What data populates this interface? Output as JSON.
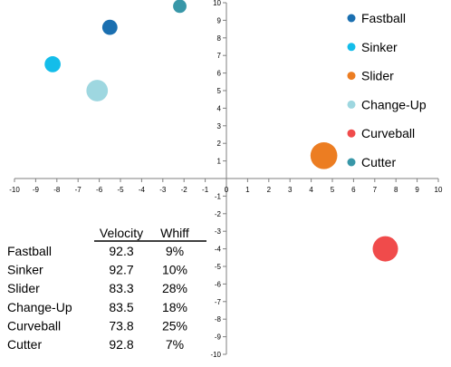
{
  "chart_data": {
    "type": "scatter",
    "xlim": [
      -10,
      10
    ],
    "ylim": [
      -10,
      10
    ],
    "x_ticks": [
      -10,
      -9,
      -8,
      -7,
      -6,
      -5,
      -4,
      -3,
      -2,
      -1,
      0,
      1,
      2,
      3,
      4,
      5,
      6,
      7,
      8,
      9,
      10
    ],
    "y_ticks": [
      -10,
      -9,
      -8,
      -7,
      -6,
      -5,
      -4,
      -3,
      -2,
      -1,
      1,
      2,
      3,
      4,
      5,
      6,
      7,
      8,
      9,
      10
    ],
    "grid": false,
    "legend_position": "top-right",
    "series": [
      {
        "name": "Fastball",
        "x": -5.5,
        "y": 8.6,
        "size": 9,
        "color": "#1a6fb0"
      },
      {
        "name": "Sinker",
        "x": -8.2,
        "y": 6.5,
        "size": 10,
        "color": "#14bdea"
      },
      {
        "name": "Slider",
        "x": 4.6,
        "y": 1.3,
        "size": 28,
        "color": "#ec7d22"
      },
      {
        "name": "Change-Up",
        "x": -6.1,
        "y": 5.0,
        "size": 18,
        "color": "#9ed7e0"
      },
      {
        "name": "Curveball",
        "x": 7.5,
        "y": -4.0,
        "size": 25,
        "color": "#f04b4b"
      },
      {
        "name": "Cutter",
        "x": -2.2,
        "y": 9.8,
        "size": 7,
        "color": "#3897a8"
      }
    ],
    "table": {
      "headers": [
        "",
        "Velocity",
        "Whiff"
      ],
      "rows": [
        {
          "pitch": "Fastball",
          "velocity": "92.3",
          "whiff": "9%"
        },
        {
          "pitch": "Sinker",
          "velocity": "92.7",
          "whiff": "10%"
        },
        {
          "pitch": "Slider",
          "velocity": "83.3",
          "whiff": "28%"
        },
        {
          "pitch": "Change-Up",
          "velocity": "83.5",
          "whiff": "18%"
        },
        {
          "pitch": "Curveball",
          "velocity": "73.8",
          "whiff": "25%"
        },
        {
          "pitch": "Cutter",
          "velocity": "92.8",
          "whiff": "7%"
        }
      ]
    }
  }
}
